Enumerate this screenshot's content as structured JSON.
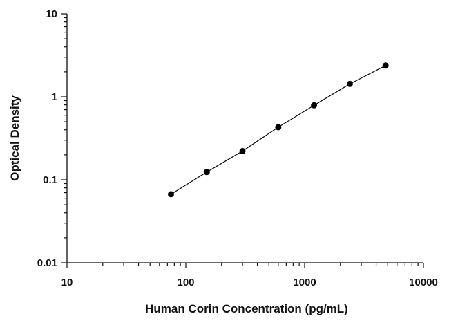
{
  "chart_data": {
    "type": "scatter",
    "title": "",
    "xlabel": "Human Corin Concentration (pg/mL)",
    "ylabel": "Optical Density",
    "xscale": "log",
    "yscale": "log",
    "xlim": [
      10,
      10000
    ],
    "ylim": [
      0.01,
      10
    ],
    "x_ticks": [
      10,
      100,
      1000,
      10000
    ],
    "x_tick_labels": [
      "10",
      "100",
      "1000",
      "10000"
    ],
    "y_ticks": [
      0.01,
      0.1,
      1,
      10
    ],
    "y_tick_labels": [
      "0.01",
      "0.1",
      "1",
      "10"
    ],
    "grid": false,
    "legend": "none",
    "fit_line": true,
    "series": [
      {
        "x": [
          75,
          150,
          300,
          600,
          1200,
          2400,
          4800
        ],
        "y": [
          0.067,
          0.124,
          0.222,
          0.43,
          0.79,
          1.43,
          2.38
        ]
      }
    ],
    "colors": {
      "points": "#000000",
      "line": "#111111",
      "axes": "#111111"
    }
  }
}
